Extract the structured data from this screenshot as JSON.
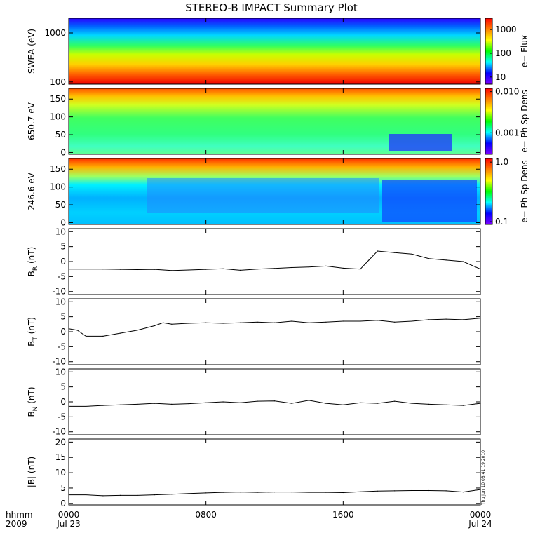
{
  "title": "STEREO-B IMPACT Summary Plot",
  "footer": {
    "time_label": "hhmm",
    "year_label": "2009"
  },
  "timestamp_label": "Thu Jun 10 08:41:19 2010",
  "colors": {
    "axis": "#000000",
    "line": "#000000",
    "background": "#ffffff"
  },
  "chart_data": {
    "type": "line",
    "x_axis": {
      "range_hours": [
        0,
        24
      ],
      "ticks": [
        {
          "hour": 0,
          "time": "0000",
          "date": "Jul 23"
        },
        {
          "hour": 8,
          "time": "0800",
          "date": ""
        },
        {
          "hour": 16,
          "time": "1600",
          "date": ""
        },
        {
          "hour": 24,
          "time": "0000",
          "date": "Jul 24"
        }
      ]
    },
    "panels": [
      {
        "id": "swea",
        "type": "heatmap",
        "ylabel": "SWEA (eV)",
        "yscale": "log",
        "ylim": [
          90,
          2000
        ],
        "yticks": [
          100,
          1000
        ],
        "colorbar": {
          "label": "e− Flux",
          "scale": "log",
          "range": [
            5,
            3000
          ],
          "ticks": [
            {
              "v": 10,
              "t": "10"
            },
            {
              "v": 100,
              "t": "100"
            },
            {
              "v": 1000,
              "t": "1000"
            }
          ]
        }
      },
      {
        "id": "pad650",
        "type": "heatmap",
        "ylabel": "650.7 eV",
        "yscale": "linear",
        "ylim": [
          -5,
          180
        ],
        "yticks": [
          0,
          50,
          100,
          150
        ],
        "colorbar": {
          "label": "e− Ph Sp Dens",
          "scale": "log",
          "range": [
            0.0003,
            0.012
          ],
          "ticks": [
            {
              "v": 0.001,
              "t": "0.001"
            },
            {
              "v": 0.01,
              "t": "0.010"
            }
          ]
        }
      },
      {
        "id": "pad246",
        "type": "heatmap",
        "ylabel": "246.6 eV",
        "yscale": "linear",
        "ylim": [
          -5,
          180
        ],
        "yticks": [
          0,
          50,
          100,
          150
        ],
        "colorbar": {
          "label": "e− Ph Sp Dens",
          "scale": "log",
          "range": [
            0.09,
            1.15
          ],
          "ticks": [
            {
              "v": 0.1,
              "t": "0.1"
            },
            {
              "v": 1,
              "t": "1.0"
            }
          ]
        }
      },
      {
        "id": "br",
        "type": "line",
        "ylabel": "B",
        "ylabel_sub": "R",
        "ylabel_unit": " (nT)",
        "ylim": [
          -11,
          11
        ],
        "yticks": [
          -10,
          -5,
          0,
          5,
          10
        ],
        "series": {
          "x": [
            0,
            1,
            2,
            3,
            4,
            5,
            6,
            7,
            8,
            9,
            10,
            11,
            12,
            13,
            14,
            15,
            16,
            17,
            17.5,
            18,
            19,
            20,
            21,
            22,
            23,
            24
          ],
          "values": [
            -2.5,
            -2.5,
            -2.5,
            -2.6,
            -2.7,
            -2.6,
            -3.0,
            -2.8,
            -2.6,
            -2.4,
            -2.9,
            -2.5,
            -2.3,
            -2.0,
            -1.8,
            -1.5,
            -2.2,
            -2.5,
            0.5,
            3.5,
            3.0,
            2.5,
            1.0,
            0.5,
            0.0,
            -2.5
          ]
        }
      },
      {
        "id": "bt",
        "type": "line",
        "ylabel": "B",
        "ylabel_sub": "T",
        "ylabel_unit": " (nT)",
        "ylim": [
          -11,
          11
        ],
        "yticks": [
          -10,
          -5,
          0,
          5,
          10
        ],
        "series": {
          "x": [
            0,
            0.5,
            1,
            2,
            3,
            4,
            5,
            5.5,
            6,
            7,
            8,
            9,
            10,
            11,
            12,
            13,
            14,
            15,
            16,
            17,
            18,
            19,
            20,
            21,
            22,
            23,
            24
          ],
          "values": [
            1.0,
            0.5,
            -1.5,
            -1.5,
            -0.5,
            0.5,
            2.0,
            3.0,
            2.5,
            2.8,
            3.0,
            2.8,
            3.0,
            3.2,
            3.0,
            3.5,
            3.0,
            3.2,
            3.5,
            3.5,
            3.8,
            3.2,
            3.5,
            4.0,
            4.2,
            4.0,
            4.5
          ]
        }
      },
      {
        "id": "bn",
        "type": "line",
        "ylabel": "B",
        "ylabel_sub": "N",
        "ylabel_unit": " (nT)",
        "ylim": [
          -11,
          11
        ],
        "yticks": [
          -10,
          -5,
          0,
          5,
          10
        ],
        "series": {
          "x": [
            0,
            1,
            2,
            3,
            4,
            5,
            6,
            7,
            8,
            9,
            10,
            11,
            12,
            13,
            14,
            15,
            16,
            17,
            18,
            19,
            20,
            21,
            22,
            23,
            24
          ],
          "values": [
            -1.5,
            -1.5,
            -1.2,
            -1.0,
            -0.8,
            -0.5,
            -0.8,
            -0.6,
            -0.3,
            0.0,
            -0.3,
            0.2,
            0.3,
            -0.5,
            0.5,
            -0.5,
            -1.0,
            -0.3,
            -0.5,
            0.2,
            -0.5,
            -0.8,
            -1.0,
            -1.2,
            -0.5
          ]
        }
      },
      {
        "id": "bmag",
        "type": "line",
        "ylabel": "|B| (nT)",
        "ylim": [
          -0.5,
          21
        ],
        "yticks": [
          0,
          5,
          10,
          15,
          20
        ],
        "series": {
          "x": [
            0,
            1,
            2,
            3,
            4,
            5,
            6,
            7,
            8,
            9,
            10,
            11,
            12,
            13,
            14,
            15,
            16,
            17,
            18,
            19,
            20,
            21,
            22,
            23,
            24
          ],
          "values": [
            2.8,
            2.8,
            2.5,
            2.6,
            2.6,
            2.8,
            3.0,
            3.2,
            3.4,
            3.6,
            3.7,
            3.6,
            3.7,
            3.7,
            3.6,
            3.6,
            3.5,
            3.8,
            4.0,
            4.1,
            4.2,
            4.2,
            4.1,
            3.7,
            4.5
          ]
        }
      }
    ]
  }
}
